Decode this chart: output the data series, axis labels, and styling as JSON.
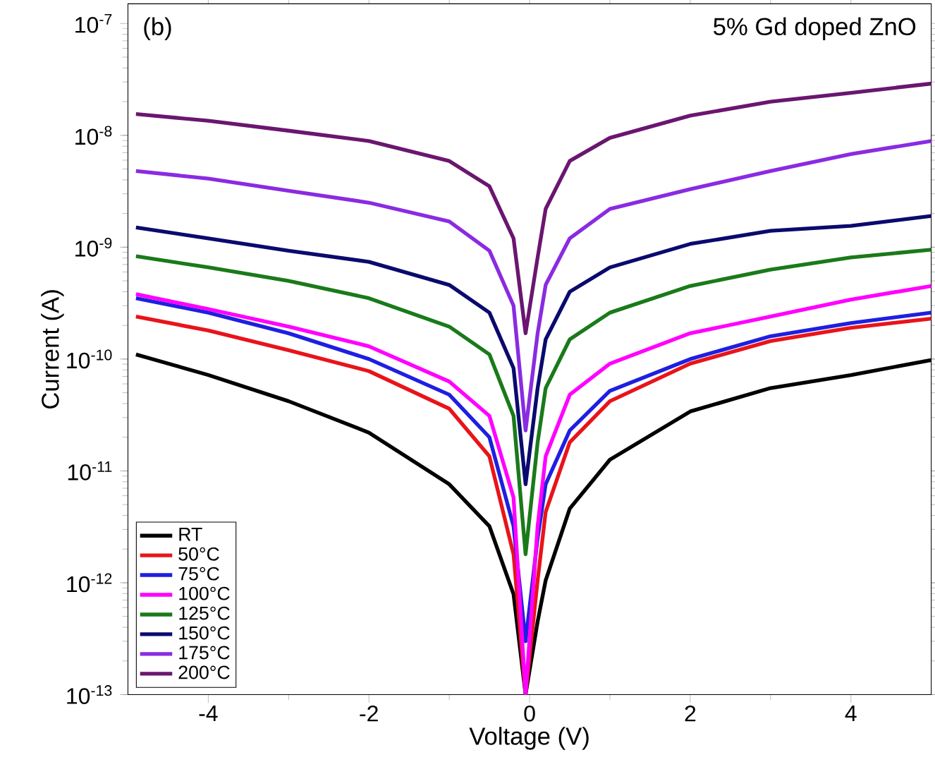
{
  "chart_data": {
    "type": "line",
    "xlabel": "Voltage (V)",
    "ylabel": "Current (A)",
    "log": "y",
    "annotations": [
      "(b)",
      "5% Gd doped ZnO"
    ],
    "x": [
      -4.9,
      -4,
      -3,
      -2,
      -1,
      -0.5,
      -0.2,
      -0.05,
      0.1,
      0.2,
      0.5,
      1,
      2,
      3,
      4,
      5
    ],
    "xlim": [
      -5,
      5
    ],
    "xticks": [
      -4,
      -2,
      0,
      2,
      4
    ],
    "ylim": [
      1e-13,
      1.5e-07
    ],
    "yticks": [
      {
        "value": 1e-13,
        "label": "10$^{-13}$"
      },
      {
        "value": 1e-12,
        "label": "10$^{-12}$"
      },
      {
        "value": 1e-11,
        "label": "10$^{-11}$"
      },
      {
        "value": 1e-10,
        "label": "10$^{-10}$"
      },
      {
        "value": 1e-09,
        "label": "10$^{-9}$"
      },
      {
        "value": 1e-08,
        "label": "10$^{-8}$"
      },
      {
        "value": 1e-07,
        "label": "10$^{-7}$"
      }
    ],
    "legend": "bottom left",
    "marker": "none",
    "line_style": "solid",
    "series": [
      {
        "name": "RT",
        "color": "#000000",
        "values": [
          1.1e-10,
          7.2e-11,
          4.2e-11,
          2.2e-11,
          7.6e-12,
          3.2e-12,
          7.9e-13,
          1e-13,
          4.5e-13,
          1.05e-12,
          4.6e-12,
          1.26e-11,
          3.4e-11,
          5.5e-11,
          7.2e-11,
          9.8e-11
        ]
      },
      {
        "name": "50°C",
        "color": "#e8141a",
        "values": [
          2.4e-10,
          1.8e-10,
          1.2e-10,
          7.8e-11,
          3.6e-11,
          1.35e-11,
          1.8e-12,
          1e-13,
          1.05e-12,
          4.3e-12,
          1.8e-11,
          4.2e-11,
          9.1e-11,
          1.45e-10,
          1.9e-10,
          2.3e-10
        ]
      },
      {
        "name": "75°C",
        "color": "#1f1fe0",
        "values": [
          3.5e-10,
          2.6e-10,
          1.7e-10,
          1e-10,
          4.8e-11,
          2e-11,
          3.2e-12,
          3e-13,
          2.5e-12,
          7.6e-12,
          2.3e-11,
          5.2e-11,
          1e-10,
          1.6e-10,
          2.1e-10,
          2.6e-10
        ]
      },
      {
        "name": "100°C",
        "color": "#ff00ff",
        "values": [
          3.8e-10,
          2.8e-10,
          1.95e-10,
          1.3e-10,
          6.3e-11,
          3.1e-11,
          5.8e-12,
          1e-13,
          3.2e-12,
          1.35e-11,
          4.8e-11,
          9.1e-11,
          1.7e-10,
          2.4e-10,
          3.4e-10,
          4.5e-10
        ]
      },
      {
        "name": "125°C",
        "color": "#1a7a1a",
        "values": [
          8.3e-10,
          6.6e-10,
          5e-10,
          3.5e-10,
          1.95e-10,
          1.1e-10,
          3.1e-11,
          1.8e-12,
          1.8e-11,
          5.5e-11,
          1.5e-10,
          2.6e-10,
          4.5e-10,
          6.3e-10,
          8.1e-10,
          9.5e-10
        ]
      },
      {
        "name": "150°C",
        "color": "#0a0a6e",
        "values": [
          1.5e-09,
          1.2e-09,
          9.3e-10,
          7.4e-10,
          4.6e-10,
          2.6e-10,
          8.3e-11,
          7.6e-12,
          5.5e-11,
          1.5e-10,
          4e-10,
          6.6e-10,
          1.07e-09,
          1.4e-09,
          1.55e-09,
          1.9e-09
        ]
      },
      {
        "name": "175°C",
        "color": "#8a2be2",
        "values": [
          4.8e-09,
          4.1e-09,
          3.2e-09,
          2.5e-09,
          1.7e-09,
          9.3e-10,
          3e-10,
          2.3e-11,
          1.7e-10,
          4.6e-10,
          1.2e-09,
          2.2e-09,
          3.3e-09,
          4.8e-09,
          6.8e-09,
          8.9e-09
        ]
      },
      {
        "name": "200°C",
        "color": "#6a1670",
        "values": [
          1.55e-08,
          1.35e-08,
          1.1e-08,
          8.9e-09,
          5.9e-09,
          3.5e-09,
          1.2e-09,
          1.7e-10,
          8.1e-10,
          2.2e-09,
          5.9e-09,
          9.5e-09,
          1.5e-08,
          2e-08,
          2.4e-08,
          2.9e-08
        ]
      }
    ]
  }
}
